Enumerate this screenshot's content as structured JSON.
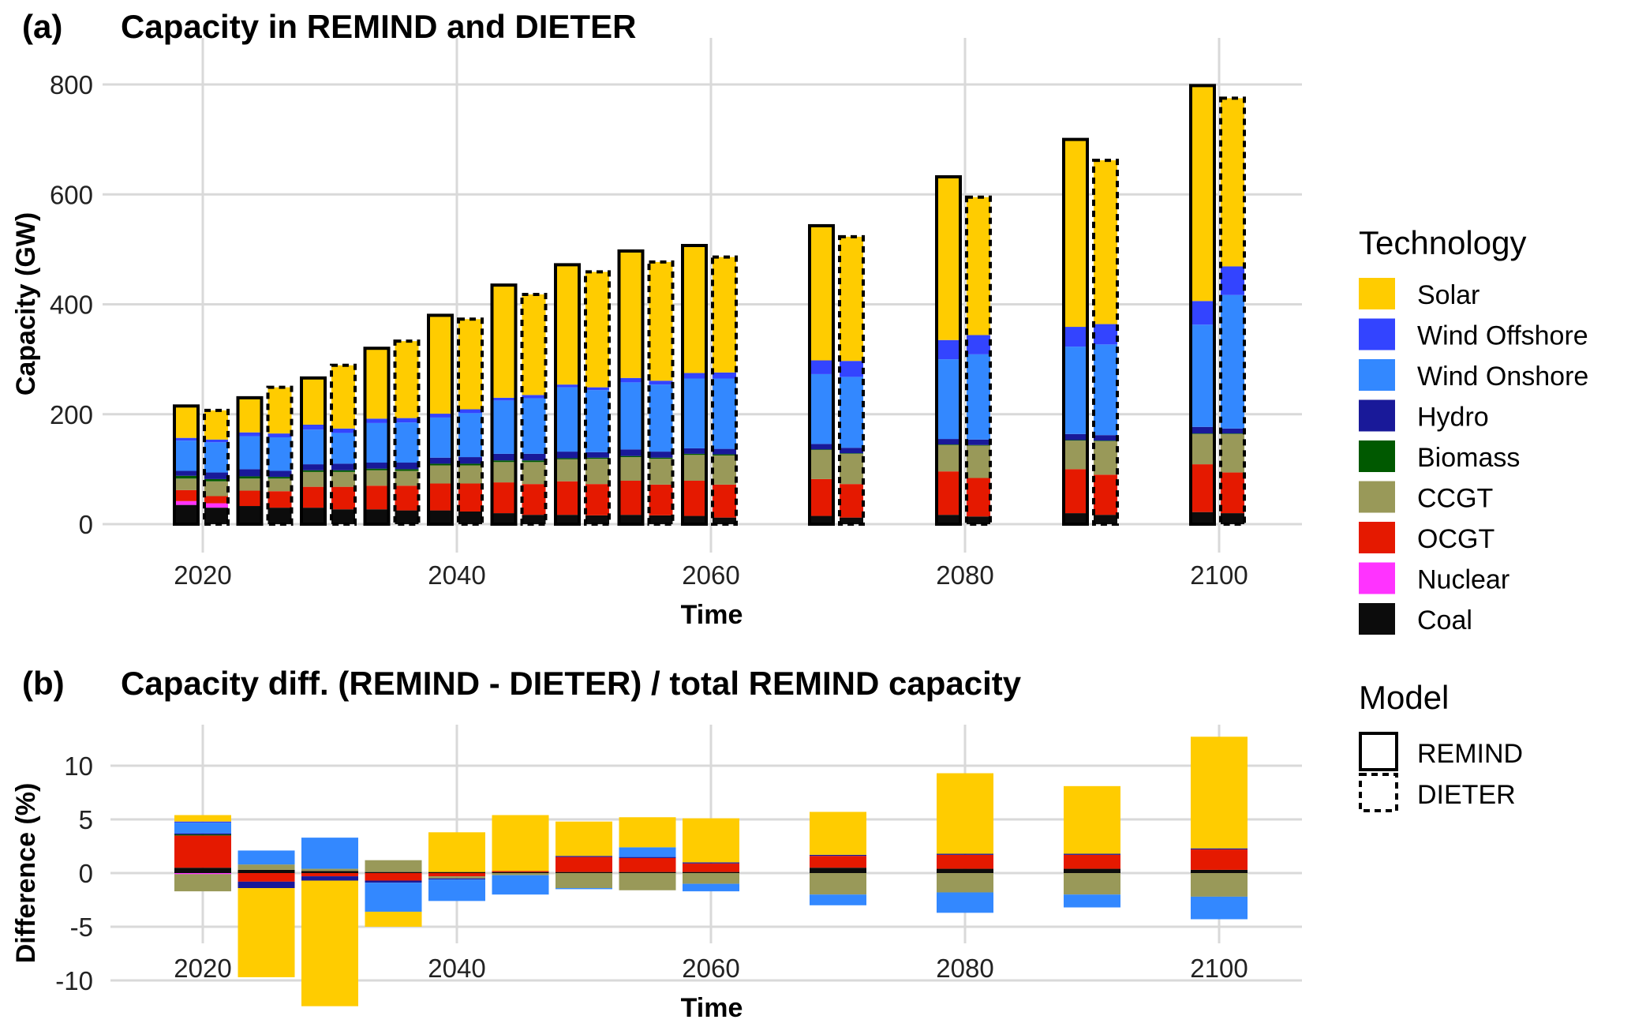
{
  "panel_a": {
    "tag": "(a)",
    "title": "Capacity in REMIND and DIETER"
  },
  "panel_b": {
    "tag": "(b)",
    "title": "Capacity diff. (REMIND - DIETER) / total REMIND capacity"
  },
  "legend_tech": {
    "title": "Technology"
  },
  "legend_model": {
    "title": "Model",
    "items": [
      "REMIND",
      "DIETER"
    ]
  },
  "colors": {
    "Solar": "#FFCC00",
    "Wind Offshore": "#3344FF",
    "Wind Onshore": "#3388FF",
    "Hydro": "#191999",
    "Biomass": "#005900",
    "CCGT": "#999959",
    "OCGT": "#E51900",
    "Nuclear": "#FF33FF",
    "Coal": "#0C0C0C"
  },
  "chart_data": [
    {
      "type": "bar",
      "stacked": true,
      "title": "Capacity in REMIND and DIETER",
      "xlabel": "Time",
      "ylabel": "Capacity (GW)",
      "ylim": [
        0,
        800
      ],
      "yticks": [
        0,
        200,
        400,
        600,
        800
      ],
      "xticks": [
        2020,
        2040,
        2060,
        2080,
        2100
      ],
      "grid": true,
      "legend": "right",
      "technologies": [
        "Coal",
        "Nuclear",
        "OCGT",
        "CCGT",
        "Biomass",
        "Hydro",
        "Wind Onshore",
        "Wind Offshore",
        "Solar"
      ],
      "x": [
        2020,
        2025,
        2030,
        2035,
        2040,
        2045,
        2050,
        2055,
        2060,
        2070,
        2080,
        2090,
        2100
      ],
      "series": [
        {
          "name": "REMIND",
          "values": [
            [
              35,
              7,
              20,
              21,
              5,
              9,
              55,
              5,
              58
            ],
            [
              33,
              0,
              28,
              22,
              4,
              13,
              60,
              7,
              63
            ],
            [
              30,
              0,
              38,
              27,
              3,
              11,
              63,
              9,
              85
            ],
            [
              27,
              0,
              43,
              28,
              3,
              11,
              72,
              8,
              128
            ],
            [
              25,
              0,
              49,
              33,
              3,
              11,
              73,
              7,
              179
            ],
            [
              20,
              0,
              56,
              37,
              3,
              12,
              97,
              5,
              205
            ],
            [
              17,
              0,
              61,
              40,
              2,
              12,
              117,
              5,
              218
            ],
            [
              17,
              0,
              62,
              43,
              2,
              12,
              122,
              8,
              231
            ],
            [
              15,
              0,
              64,
              47,
              2,
              10,
              127,
              10,
              232
            ],
            [
              15,
              0,
              67,
              53,
              1,
              10,
              127,
              25,
              245
            ],
            [
              17,
              0,
              79,
              48,
              1,
              10,
              145,
              35,
              297
            ],
            [
              20,
              0,
              80,
              52,
              1,
              11,
              159,
              36,
              341
            ],
            [
              22,
              0,
              87,
              55,
              1,
              12,
              186,
              43,
              392
            ]
          ]
        },
        {
          "name": "DIETER",
          "values": [
            [
              30,
              8,
              13,
              27,
              4,
              12,
              55,
              5,
              53
            ],
            [
              30,
              0,
              30,
              23,
              3,
              11,
              61,
              7,
              84
            ],
            [
              27,
              0,
              41,
              27,
              3,
              12,
              56,
              8,
              115
            ],
            [
              25,
              0,
              45,
              27,
              3,
              12,
              73,
              8,
              140
            ],
            [
              23,
              0,
              51,
              33,
              3,
              12,
              80,
              7,
              164
            ],
            [
              17,
              0,
              56,
              40,
              3,
              12,
              101,
              6,
              183
            ],
            [
              16,
              0,
              57,
              46,
              2,
              10,
              113,
              5,
              210
            ],
            [
              16,
              0,
              56,
              47,
              2,
              11,
              122,
              7,
              216
            ],
            [
              12,
              0,
              60,
              53,
              2,
              10,
              128,
              11,
              210
            ],
            [
              12,
              0,
              61,
              55,
              1,
              10,
              129,
              29,
              226
            ],
            [
              14,
              0,
              70,
              59,
              1,
              10,
              155,
              35,
              251
            ],
            [
              17,
              0,
              73,
              61,
              1,
              10,
              165,
              37,
              298
            ],
            [
              20,
              0,
              74,
              70,
              1,
              9,
              243,
              52,
              306
            ]
          ]
        }
      ]
    },
    {
      "type": "bar",
      "stacked": true,
      "title": "Capacity diff. (REMIND - DIETER) / total REMIND capacity",
      "xlabel": "Time",
      "ylabel": "Difference (%)",
      "ylim": [
        -12.5,
        13.5
      ],
      "yticks": [
        -10,
        -5,
        0,
        5,
        10
      ],
      "xticks": [
        2020,
        2040,
        2060,
        2080,
        2100
      ],
      "grid": true,
      "x": [
        2020,
        2025,
        2030,
        2035,
        2040,
        2045,
        2050,
        2055,
        2060,
        2070,
        2080,
        2090,
        2100
      ],
      "series": [
        {
          "name": "Coal",
          "values": [
            0.5,
            0.3,
            0.2,
            0.1,
            0.1,
            0.1,
            0.1,
            0.1,
            0.1,
            0.5,
            0.4,
            0.4,
            0.3
          ]
        },
        {
          "name": "Nuclear",
          "values": [
            -0.1,
            0,
            0,
            0,
            0,
            0,
            0,
            0,
            0,
            0,
            0,
            0,
            0
          ]
        },
        {
          "name": "OCGT",
          "values": [
            3.0,
            -0.8,
            -0.3,
            -0.7,
            -0.3,
            0.1,
            1.4,
            1.3,
            0.8,
            1.1,
            1.3,
            1.3,
            1.9
          ]
        },
        {
          "name": "CCGT",
          "values": [
            -1.6,
            0.5,
            0.2,
            1.1,
            -0.2,
            -0.2,
            -1.4,
            -1.6,
            -1.0,
            -2.0,
            -1.8,
            -2.0,
            -2.2
          ]
        },
        {
          "name": "Biomass",
          "values": [
            0.1,
            0,
            0,
            0,
            0,
            0,
            0,
            0,
            0,
            0,
            0,
            0,
            0
          ]
        },
        {
          "name": "Hydro",
          "values": [
            0.1,
            -0.6,
            -0.4,
            -0.2,
            -0.1,
            0,
            0.1,
            0.1,
            0.1,
            0.1,
            0.1,
            0.1,
            0.1
          ]
        },
        {
          "name": "Wind Onshore",
          "values": [
            1.0,
            1.3,
            2.9,
            -2.7,
            -2.0,
            -1.8,
            -0.1,
            0.9,
            -0.7,
            -1.0,
            -1.9,
            -1.2,
            -2.1
          ]
        },
        {
          "name": "Wind Offshore",
          "values": [
            0.1,
            0,
            0,
            0,
            0,
            0,
            0,
            0,
            0,
            0,
            0,
            0,
            0
          ]
        },
        {
          "name": "Solar",
          "values": [
            0.6,
            -8.3,
            -11.7,
            -1.4,
            3.7,
            5.2,
            3.2,
            2.8,
            4.1,
            4.0,
            7.5,
            6.3,
            10.4
          ]
        }
      ]
    }
  ]
}
